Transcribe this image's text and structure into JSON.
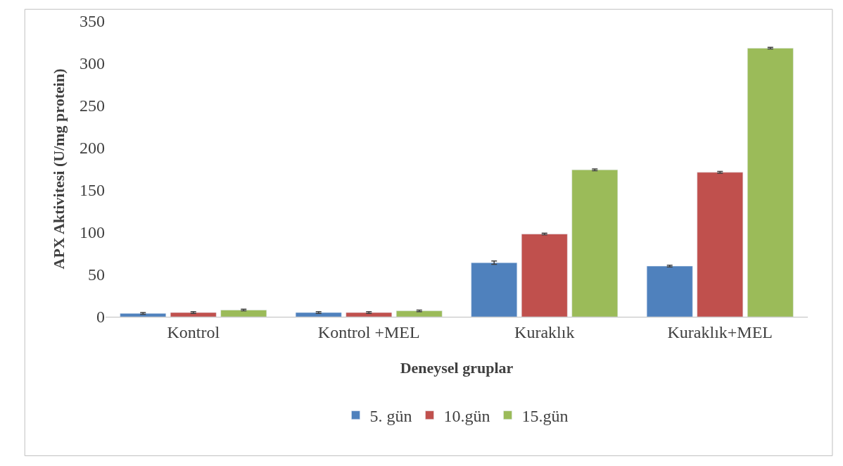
{
  "chart_data": {
    "type": "bar",
    "xlabel": "Deneysel gruplar",
    "ylabel": "APX Aktivitesi (U/mg protein)",
    "categories": [
      "Kontrol",
      "Kontrol +MEL",
      "Kuraklık",
      "Kuraklık+MEL"
    ],
    "series": [
      {
        "name": "5. gün",
        "color": "#4f81bd",
        "values": [
          4,
          5,
          64,
          60
        ],
        "errors": [
          1,
          1,
          2,
          1
        ]
      },
      {
        "name": "10.gün",
        "color": "#c0504d",
        "values": [
          5,
          5,
          98,
          171
        ],
        "errors": [
          1,
          1,
          1,
          1
        ]
      },
      {
        "name": "15.gün",
        "color": "#9bbb59",
        "values": [
          8,
          7,
          174,
          318
        ],
        "errors": [
          1,
          1,
          1,
          1
        ]
      }
    ],
    "ylim": [
      0,
      350
    ],
    "yticks": [
      0,
      50,
      100,
      150,
      200,
      250,
      300,
      350
    ],
    "grid": false,
    "legend": "bottom"
  }
}
